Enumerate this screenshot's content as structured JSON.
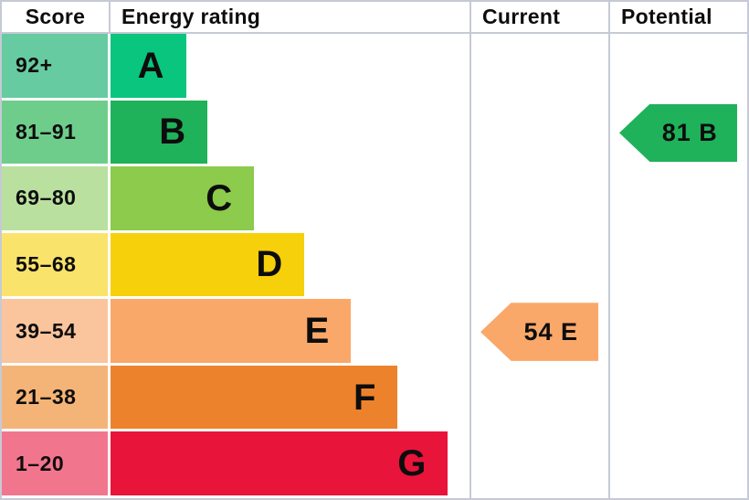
{
  "header": {
    "score": "Score",
    "energy_rating": "Energy rating",
    "current": "Current",
    "potential": "Potential"
  },
  "bands": [
    {
      "letter": "A",
      "score_range": "92+",
      "bar_color": "#09c57e",
      "score_bg": "#66cba1",
      "width_pct": 21
    },
    {
      "letter": "B",
      "score_range": "81–91",
      "bar_color": "#1fb25a",
      "score_bg": "#6fcd8b",
      "width_pct": 27
    },
    {
      "letter": "C",
      "score_range": "69–80",
      "bar_color": "#8ccb4b",
      "score_bg": "#b9e09f",
      "width_pct": 40
    },
    {
      "letter": "D",
      "score_range": "55–68",
      "bar_color": "#f6d00a",
      "score_bg": "#fae36a",
      "width_pct": 54
    },
    {
      "letter": "E",
      "score_range": "39–54",
      "bar_color": "#f9a86a",
      "score_bg": "#fac49d",
      "width_pct": 67
    },
    {
      "letter": "F",
      "score_range": "21–38",
      "bar_color": "#ec832c",
      "score_bg": "#f5b477",
      "width_pct": 80
    },
    {
      "letter": "G",
      "score_range": "1–20",
      "bar_color": "#e8143a",
      "score_bg": "#f2758e",
      "width_pct": 94
    }
  ],
  "markers": {
    "current": {
      "label": "54 E",
      "value": 54,
      "band": "E",
      "color": "#f9a86a"
    },
    "potential": {
      "label": "81 B",
      "value": 81,
      "band": "B",
      "color": "#1fb25a"
    }
  },
  "chart_data": {
    "type": "bar",
    "title": "Energy rating",
    "columns": [
      "Score",
      "Energy rating",
      "Current",
      "Potential"
    ],
    "categories": [
      "A",
      "B",
      "C",
      "D",
      "E",
      "F",
      "G"
    ],
    "score_ranges": [
      "92+",
      "81–91",
      "69–80",
      "55–68",
      "39–54",
      "21–38",
      "1–20"
    ],
    "bar_width_pct": [
      21,
      27,
      40,
      54,
      67,
      80,
      94
    ],
    "bar_colors": [
      "#09c57e",
      "#1fb25a",
      "#8ccb4b",
      "#f6d00a",
      "#f9a86a",
      "#ec832c",
      "#e8143a"
    ],
    "current": {
      "score": 54,
      "band": "E"
    },
    "potential": {
      "score": 81,
      "band": "B"
    },
    "legend_position": "none",
    "grid": false
  }
}
